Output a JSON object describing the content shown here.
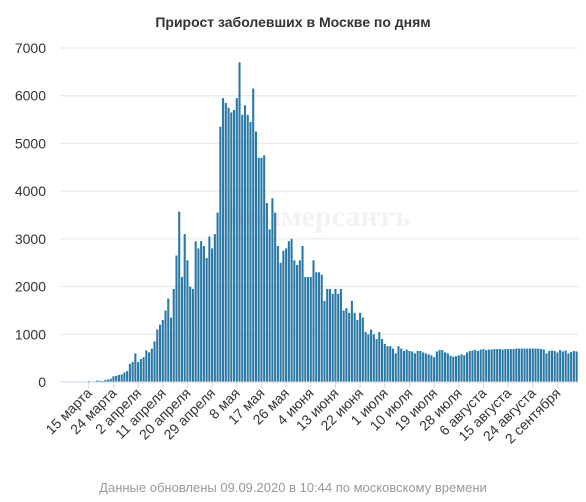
{
  "footer": {
    "updated_text": "Данные обновлены 09.09.2020 в 10:44 по московскому времени"
  },
  "watermark": {
    "text": "Коммерсантъ"
  },
  "colors": {
    "bar": "#2a78a6",
    "grid": "#e6e6e6",
    "axis": "#ccd6eb",
    "text": "#333333",
    "footer": "#999999"
  },
  "chart_data": {
    "type": "bar",
    "title": "Прирост заболевших в Москве по дням",
    "xlabel": "",
    "ylabel": "",
    "ylim": [
      0,
      7000
    ],
    "yticks": [
      0,
      1000,
      2000,
      3000,
      4000,
      5000,
      6000,
      7000
    ],
    "grid": true,
    "legend": "none",
    "xtick_labels": [
      "15 марта",
      "24 марта",
      "2 апреля",
      "11 апреля",
      "20 апреля",
      "29 апреля",
      "8 мая",
      "17 мая",
      "26 мая",
      "4 июня",
      "13 июня",
      "22 июня",
      "1 июля",
      "10 июля",
      "19 июля",
      "28 июля",
      "6 августа",
      "15 августа",
      "24 августа",
      "2 сентября"
    ],
    "start_date": "2020-03-05",
    "end_date": "2020-09-09",
    "values": [
      5,
      2,
      3,
      5,
      0,
      2,
      5,
      2,
      10,
      0,
      20,
      3,
      15,
      30,
      25,
      20,
      40,
      50,
      70,
      120,
      130,
      150,
      160,
      200,
      230,
      380,
      420,
      600,
      420,
      480,
      520,
      660,
      620,
      700,
      850,
      1100,
      1200,
      1300,
      1500,
      1750,
      1350,
      1950,
      2650,
      3570,
      2200,
      3100,
      2550,
      2000,
      1950,
      2950,
      2800,
      2950,
      2850,
      2600,
      3050,
      2800,
      3100,
      3550,
      5350,
      5950,
      5850,
      5750,
      5650,
      5700,
      5950,
      6700,
      5600,
      5800,
      5600,
      5450,
      6150,
      5250,
      4700,
      4700,
      4750,
      3750,
      3200,
      3850,
      3550,
      2850,
      2500,
      2750,
      2800,
      2950,
      3000,
      2550,
      2450,
      2550,
      2850,
      2200,
      2200,
      2200,
      2550,
      2300,
      2300,
      2250,
      1700,
      1950,
      1950,
      1850,
      1950,
      1850,
      1950,
      1500,
      1550,
      1450,
      1700,
      1450,
      1300,
      1450,
      1350,
      1050,
      1000,
      1100,
      1000,
      900,
      1050,
      900,
      800,
      750,
      750,
      700,
      600,
      750,
      700,
      650,
      680,
      650,
      640,
      600,
      650,
      650,
      620,
      600,
      580,
      560,
      520,
      640,
      670,
      670,
      620,
      600,
      550,
      530,
      540,
      560,
      580,
      560,
      620,
      650,
      660,
      670,
      650,
      680,
      690,
      670,
      680,
      680,
      690,
      690,
      690,
      680,
      690,
      690,
      690,
      690,
      700,
      700,
      700,
      700,
      700,
      700,
      700,
      700,
      700,
      690,
      680,
      600,
      650,
      660,
      650,
      620,
      670,
      640,
      660,
      600,
      630,
      650,
      640,
      620,
      660,
      650,
      680,
      700,
      690,
      650,
      640,
      650
    ]
  }
}
